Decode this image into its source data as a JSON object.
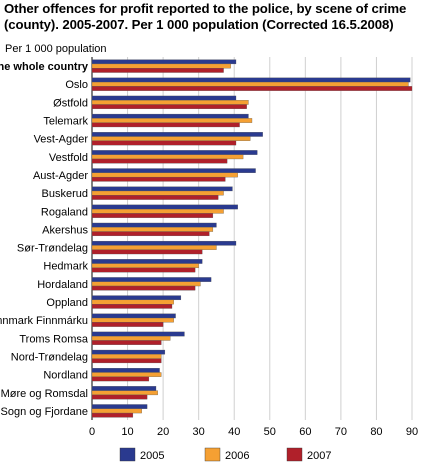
{
  "chart_data": {
    "type": "bar",
    "orientation": "horizontal",
    "title": "Other offences for profit reported to the police, by scene of crime (county). 2005-2007. Per 1 000 population (Corrected 16.5.2008)",
    "unit_label": "Per 1 000 population",
    "categories": [
      "The whole country",
      "Oslo",
      "Østfold",
      "Telemark",
      "Vest-Agder",
      "Vestfold",
      "Aust-Agder",
      "Buskerud",
      "Rogaland",
      "Akershus",
      "Sør-Trøndelag",
      "Hedmark",
      "Hordaland",
      "Oppland",
      "Finnmark Finnmárku",
      "Troms Romsa",
      "Nord-Trøndelag",
      "Nordland",
      "Møre og Romsdal",
      "Sogn og Fjordane"
    ],
    "bold_categories": [
      "The whole country"
    ],
    "series": [
      {
        "name": "2005",
        "color": "#2a3a8f",
        "values": [
          40.5,
          89.5,
          40.5,
          44.0,
          48.0,
          46.5,
          46.0,
          39.5,
          41.0,
          35.0,
          40.5,
          31.0,
          33.5,
          25.0,
          23.5,
          26.0,
          20.5,
          19.0,
          18.0,
          15.5
        ]
      },
      {
        "name": "2006",
        "color": "#f5a033",
        "values": [
          39.0,
          89.0,
          44.0,
          45.0,
          44.5,
          42.5,
          41.0,
          37.0,
          37.0,
          34.0,
          35.0,
          30.0,
          30.5,
          23.0,
          23.0,
          22.0,
          19.5,
          19.5,
          18.5,
          14.0
        ]
      },
      {
        "name": "2007",
        "color": "#b0202a",
        "values": [
          37.0,
          90.0,
          43.5,
          41.5,
          40.5,
          38.0,
          37.5,
          35.5,
          34.0,
          33.0,
          31.0,
          29.0,
          29.0,
          22.5,
          20.0,
          19.5,
          19.5,
          16.0,
          15.5,
          11.5
        ]
      }
    ],
    "xlim": [
      0,
      90
    ],
    "xticks": [
      "0",
      "10",
      "20",
      "30",
      "40",
      "50",
      "60",
      "70",
      "80",
      "90"
    ],
    "grid": true,
    "legend_position": "bottom"
  }
}
